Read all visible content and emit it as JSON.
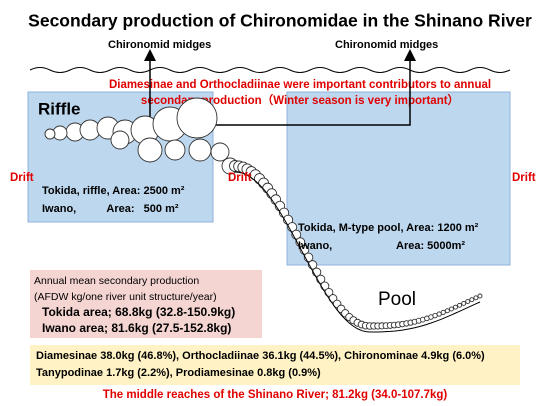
{
  "header": {
    "title": "Secondary production of Chironomidae in the Shinano River"
  },
  "emergence": {
    "left": "Chironomid midges",
    "right": "Chironomid midges"
  },
  "note": {
    "lines": [
      "Diamesinae and Orthocladiinae were important contributors to annual",
      "secondary production（Winter season is very important）"
    ]
  },
  "drift": {
    "left": "Drift",
    "middle": "Drift",
    "right": "Drift"
  },
  "riffle": {
    "label": "Riffle",
    "lines": [
      "Tokida, riffle, Area: 2500 m²",
      "Iwano,          Area:   500 m²"
    ]
  },
  "pool": {
    "label": "Pool",
    "lines": [
      "Tokida, M-type pool, Area: 1200 m²",
      "Iwano,                     Area: 5000m²"
    ]
  },
  "annual": {
    "lines": [
      "Annual mean secondary production",
      "(AFDW kg/one river unit structure/year)",
      "Tokida area; 68.8kg (32.8-150.9kg)",
      "Iwano area; 81.6kg (27.5-152.8kg)"
    ]
  },
  "taxa": {
    "lines": [
      "Diamesinae 38.0kg (46.8%), Orthocladiinae 36.1kg (44.5%), Chironominae 4.9kg (6.0%)",
      "Tanypodinae 1.7kg (2.2%), Prodiamesinae 0.8kg (0.9%)"
    ]
  },
  "footer": {
    "text": "The middle reaches of the Shinano River; 81.2kg (34.0-107.7kg)"
  }
}
